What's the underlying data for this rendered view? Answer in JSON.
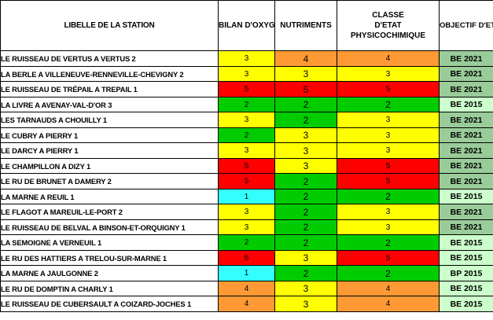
{
  "header": {
    "station": "LIBELLE DE LA STATION",
    "oxygen": "BILAN D'OXYGENE",
    "nutrients": "NUTRIMENTS",
    "class_line1": "CLASSE",
    "class_line2": "D'ETAT",
    "class_line3": "PHYSICOCHIMIQUE",
    "objective": "OBJECTIF D'ETAT ECOLOGIQUE DU SDAGE"
  },
  "colors": {
    "yellow": "#ffff00",
    "orange": "#ff9933",
    "red": "#ff0000",
    "green": "#00cc00",
    "cyan": "#33ffff",
    "objective_dark": "#99cc99",
    "objective_light": "#ccffcc"
  },
  "rows": [
    {
      "station": "LE RUISSEAU DE VERTUS A VERTUS 2",
      "oxygen": "3",
      "nutrients": "4",
      "class": "4",
      "objective": "BE 2021"
    },
    {
      "station": "LA BERLE A VILLENEUVE-RENNEVILLE-CHEVIGNY 2",
      "oxygen": "3",
      "nutrients": "3",
      "class": "3",
      "objective": "BE 2021"
    },
    {
      "station": "LE RUISSEAU DE TRÉPAIL A TREPAIL 1",
      "oxygen": "5",
      "nutrients": "5",
      "class": "5",
      "objective": "BE 2021"
    },
    {
      "station": "LA LIVRE A AVENAY-VAL-D'OR 3",
      "oxygen": "2",
      "nutrients": "2",
      "class": "2",
      "objective": "BE 2015"
    },
    {
      "station": "LES TARNAUDS A CHOUILLY 1",
      "oxygen": "3",
      "nutrients": "2",
      "class": "3",
      "objective": "BE 2021"
    },
    {
      "station": "LE CUBRY A PIERRY 1",
      "oxygen": "2",
      "nutrients": "3",
      "class": "3",
      "objective": "BE 2021"
    },
    {
      "station": "LE DARCY A PIERRY 1",
      "oxygen": "3",
      "nutrients": "3",
      "class": "3",
      "objective": "BE 2021"
    },
    {
      "station": "LE CHAMPILLON A DIZY 1",
      "oxygen": "5",
      "nutrients": "3",
      "class": "5",
      "objective": "BE 2021"
    },
    {
      "station": "LE RU DE BRUNET A DAMERY 2",
      "oxygen": "5",
      "nutrients": "2",
      "class": "5",
      "objective": "BE 2021"
    },
    {
      "station": "LA MARNE A REUIL 1",
      "oxygen": "1",
      "nutrients": "2",
      "class": "2",
      "objective": "BE 2015"
    },
    {
      "station": "LE FLAGOT A MAREUIL-LE-PORT 2",
      "oxygen": "3",
      "nutrients": "2",
      "class": "3",
      "objective": "BE 2021"
    },
    {
      "station": "LE RUISSEAU DE BELVAL A BINSON-ET-ORQUIGNY 1",
      "oxygen": "3",
      "nutrients": "2",
      "class": "3",
      "objective": "BE 2021"
    },
    {
      "station": "LA SEMOIGNE A VERNEUIL 1",
      "oxygen": "2",
      "nutrients": "2",
      "class": "2",
      "objective": "BE 2015"
    },
    {
      "station": "LE RU DES HATTIERS  A TRELOU-SUR-MARNE 1",
      "oxygen": "5",
      "nutrients": "3",
      "class": "5",
      "objective": "BE 2015"
    },
    {
      "station": "LA MARNE A JAULGONNE 2",
      "oxygen": "1",
      "nutrients": "2",
      "class": "2",
      "objective": "BP 2015"
    },
    {
      "station": "LE RU DE DOMPTIN A CHARLY 1",
      "oxygen": "4",
      "nutrients": "3",
      "class": "4",
      "objective": "BE 2015"
    },
    {
      "station": "LE RUISSEAU DE CUBERSAULT A COIZARD-JOCHES 1",
      "oxygen": "4",
      "nutrients": "3",
      "class": "4",
      "objective": "BE 2015"
    }
  ]
}
